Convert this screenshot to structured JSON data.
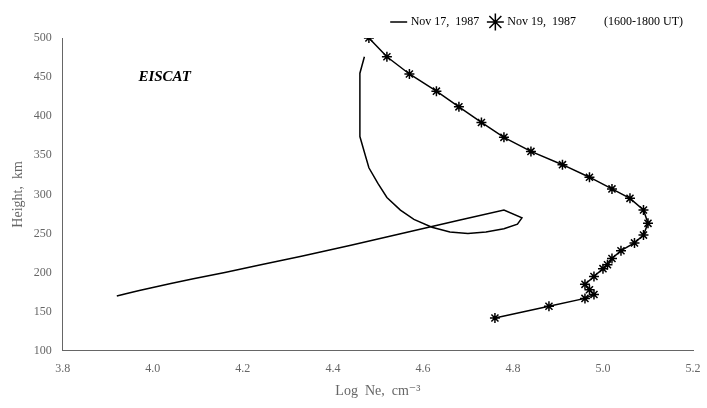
{
  "chart_data": {
    "type": "line",
    "xlabel": "Log  Ne,  cm⁻³",
    "ylabel": "Height,  km",
    "annotations": [
      "EISCAT",
      "(1600-1800 UT)"
    ],
    "xlim": [
      3.8,
      5.2
    ],
    "ylim": [
      100,
      500
    ],
    "xticks": [
      {
        "value": 3.8,
        "label": "3.8"
      },
      {
        "value": 4.0,
        "label": "4.0"
      },
      {
        "value": 4.2,
        "label": "4.2"
      },
      {
        "value": 4.4,
        "label": "4.4"
      },
      {
        "value": 4.6,
        "label": "4.6"
      },
      {
        "value": 4.8,
        "label": "4.8"
      },
      {
        "value": 5.0,
        "label": "5.0"
      },
      {
        "value": 5.2,
        "label": "5.2"
      }
    ],
    "yticks": [
      100,
      150,
      200,
      250,
      300,
      350,
      400,
      450,
      500
    ],
    "grid": false,
    "legend": "upper right",
    "series": [
      {
        "name": "Nov 17,  1987",
        "color": "#000000",
        "marker": "none",
        "x": [
          3.92,
          3.94,
          3.97,
          4.0,
          4.04,
          4.09,
          4.16,
          4.24,
          4.33,
          4.44,
          4.56,
          4.68,
          4.78,
          4.82,
          4.81,
          4.78,
          4.74,
          4.7,
          4.66,
          4.62,
          4.58,
          4.55,
          4.52,
          4.5,
          4.48,
          4.47,
          4.46,
          4.46,
          4.46,
          4.46,
          4.46,
          4.47
        ],
        "values": [
          170,
          173,
          177,
          181,
          186,
          192,
          200,
          210,
          221,
          235,
          251,
          267,
          280,
          270,
          262,
          256,
          252,
          250,
          252,
          258,
          268,
          280,
          296,
          314,
          334,
          354,
          374,
          394,
          414,
          434,
          455,
          476
        ]
      },
      {
        "name": "Nov 19,  1987",
        "color": "#000000",
        "marker": "star",
        "x": [
          4.48,
          4.52,
          4.57,
          4.63,
          4.68,
          4.73,
          4.78,
          4.84,
          4.91,
          4.97,
          5.02,
          5.06,
          5.09,
          5.1,
          5.09,
          5.07,
          5.04,
          5.02,
          5.01,
          5.0,
          4.98,
          4.96,
          4.97,
          4.98,
          4.96,
          4.88,
          4.76
        ],
        "values": [
          500,
          476,
          454,
          432,
          412,
          392,
          373,
          355,
          338,
          322,
          307,
          295,
          280,
          263,
          248,
          238,
          228,
          218,
          210,
          205,
          195,
          185,
          178,
          172,
          167,
          157,
          142
        ]
      }
    ]
  }
}
